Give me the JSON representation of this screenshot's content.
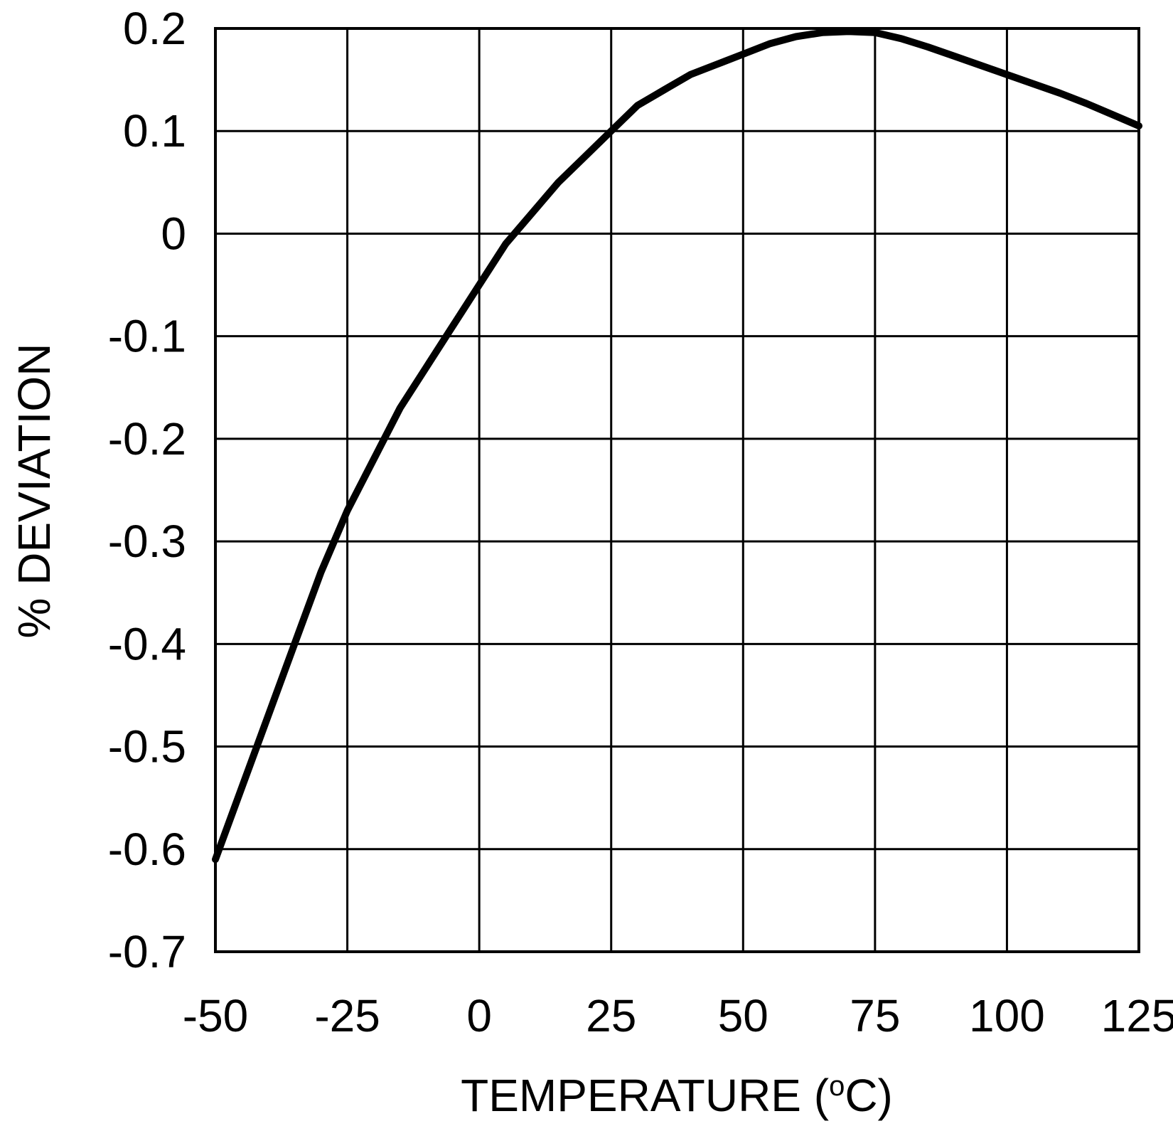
{
  "chart_data": {
    "type": "line",
    "xlabel": "TEMPERATURE (",
    "xlabel_superscript": "o",
    "xlabel_suffix": "C)",
    "ylabel": "% DEVIATION",
    "xlim": [
      -50,
      125
    ],
    "ylim": [
      -0.7,
      0.2
    ],
    "x_ticks": [
      "-50",
      "-25",
      "0",
      "25",
      "50",
      "75",
      "100",
      "125"
    ],
    "y_ticks": [
      "0.2",
      "0.1",
      "0",
      "-0.1",
      "-0.2",
      "-0.3",
      "-0.4",
      "-0.5",
      "-0.6",
      "-0.7"
    ],
    "grid": true,
    "series": [
      {
        "x": [
          -50,
          -45,
          -40,
          -35,
          -30,
          -25,
          -20,
          -15,
          -10,
          -5,
          0,
          5,
          10,
          15,
          20,
          25,
          30,
          35,
          40,
          45,
          50,
          55,
          60,
          65,
          70,
          75,
          80,
          85,
          90,
          95,
          100,
          105,
          110,
          115,
          120,
          125
        ],
        "y": [
          -0.61,
          -0.54,
          -0.47,
          -0.4,
          -0.33,
          -0.27,
          -0.22,
          -0.17,
          -0.13,
          -0.09,
          -0.05,
          -0.01,
          0.02,
          0.05,
          0.075,
          0.1,
          0.125,
          0.14,
          0.155,
          0.165,
          0.175,
          0.185,
          0.192,
          0.196,
          0.197,
          0.196,
          0.19,
          0.182,
          0.173,
          0.164,
          0.155,
          0.146,
          0.137,
          0.127,
          0.116,
          0.105
        ],
        "color": "#000000"
      }
    ]
  },
  "colors": {
    "line": "#000000",
    "grid": "#000000",
    "background": "#ffffff"
  }
}
